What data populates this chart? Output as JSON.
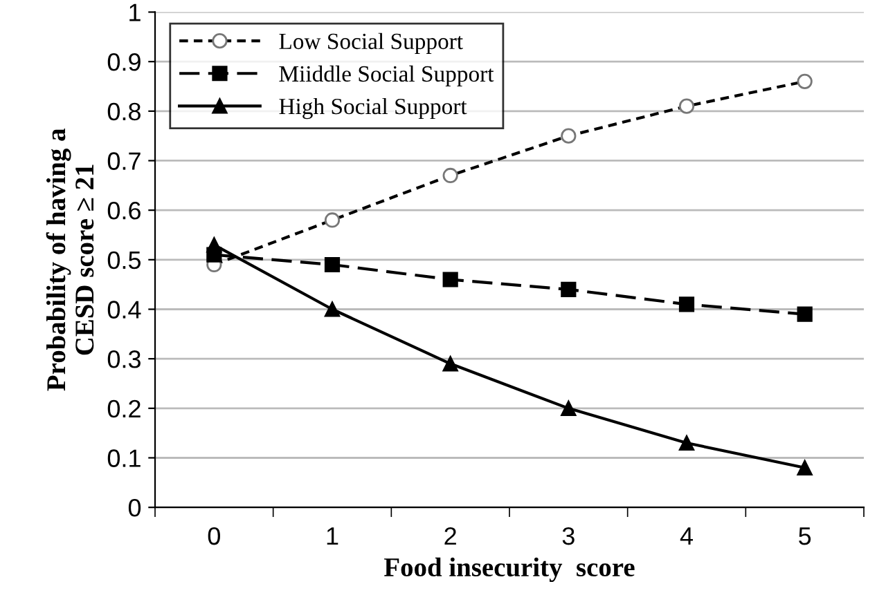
{
  "chart_data": {
    "type": "line",
    "xlabel": "Food insecurity  score",
    "ylabel": "Probability of having a\nCESD score ≥ 21",
    "categories": [
      "0",
      "1",
      "2",
      "3",
      "4",
      "5"
    ],
    "series": [
      {
        "name": "Low Social Support",
        "color": "#000000",
        "marker": "circle",
        "line_style": "dotted",
        "values": [
          0.49,
          0.58,
          0.67,
          0.75,
          0.81,
          0.86
        ]
      },
      {
        "name": "Miiddle Social Support",
        "color": "#000000",
        "marker": "square",
        "line_style": "dashed",
        "values": [
          0.51,
          0.49,
          0.46,
          0.44,
          0.41,
          0.39
        ]
      },
      {
        "name": "High Social Support",
        "color": "#000000",
        "marker": "triangle",
        "line_style": "solid",
        "values": [
          0.53,
          0.4,
          0.29,
          0.2,
          0.13,
          0.08
        ]
      }
    ],
    "ylim": [
      0,
      1
    ],
    "yticks": [
      0,
      0.1,
      0.2,
      0.3,
      0.4,
      0.5,
      0.6,
      0.7,
      0.8,
      0.9,
      1
    ],
    "grid": "y",
    "legend": "top left"
  }
}
